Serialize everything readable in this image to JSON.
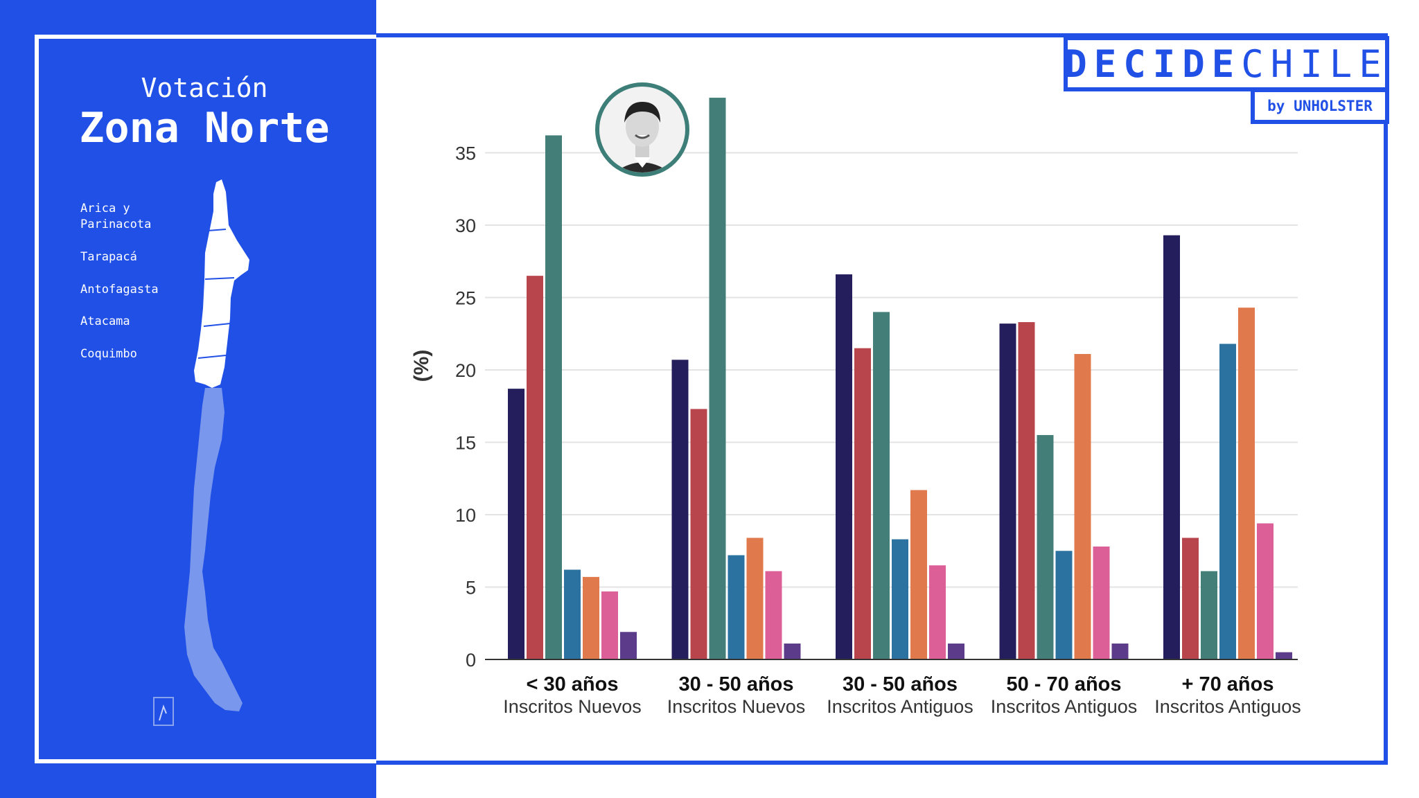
{
  "panel": {
    "title_small": "Votación",
    "title_big": "Zona Norte",
    "regions": [
      "Arica y\nParinacota",
      "Tarapacá",
      "Antofagasta",
      "Atacama",
      "Coquimbo"
    ]
  },
  "logo": {
    "bold_part": "DECIDE",
    "light_part": "CHILE",
    "sub": "by UNHOLSTER"
  },
  "colors": {
    "brand_blue": "#2150e6",
    "series": [
      "#241f5c",
      "#b8454b",
      "#437f78",
      "#2b72a0",
      "#e07a4d",
      "#dc5f98",
      "#5c3b8a"
    ]
  },
  "chart_data": {
    "type": "bar",
    "ylabel": "(%)",
    "ylim": [
      0,
      38
    ],
    "yticks": [
      0,
      5,
      10,
      15,
      20,
      25,
      30,
      35
    ],
    "grid": true,
    "categories": [
      {
        "line1": "< 30 años",
        "line2": "Inscritos Nuevos"
      },
      {
        "line1": "30 - 50 años",
        "line2": "Inscritos Nuevos"
      },
      {
        "line1": "30 - 50 años",
        "line2": "Inscritos Antiguos"
      },
      {
        "line1": "50 - 70 años",
        "line2": "Inscritos Antiguos"
      },
      {
        "line1": "+ 70 años",
        "line2": "Inscritos Antiguos"
      }
    ],
    "series": [
      {
        "values": [
          18.7,
          20.7,
          26.6,
          23.2,
          29.3
        ]
      },
      {
        "values": [
          26.5,
          17.3,
          21.5,
          23.3,
          8.4
        ]
      },
      {
        "values": [
          36.2,
          38.8,
          24.0,
          15.5,
          6.1
        ]
      },
      {
        "values": [
          6.2,
          7.2,
          8.3,
          7.5,
          21.8
        ]
      },
      {
        "values": [
          5.7,
          8.4,
          11.7,
          21.1,
          24.3
        ]
      },
      {
        "values": [
          4.7,
          6.1,
          6.5,
          7.8,
          9.4
        ]
      },
      {
        "values": [
          1.9,
          1.1,
          1.1,
          1.1,
          0.5
        ]
      }
    ]
  }
}
